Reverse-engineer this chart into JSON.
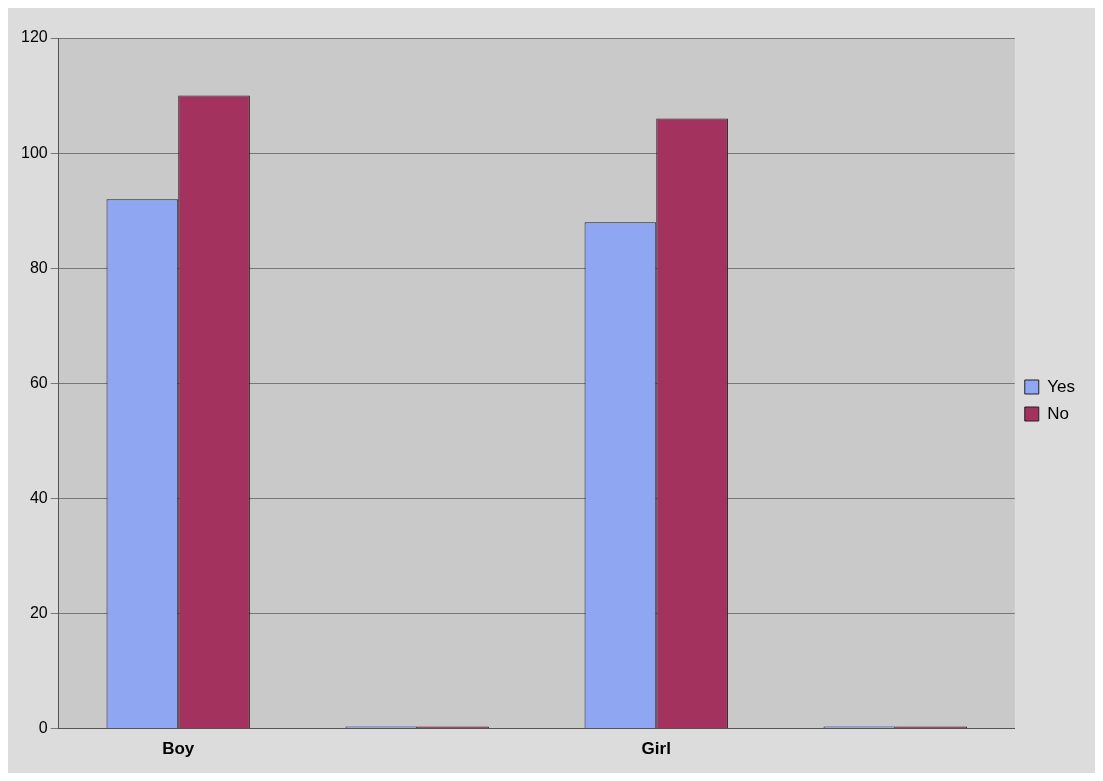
{
  "chart_data": {
    "type": "bar",
    "categories": [
      "Boy",
      null,
      "Girl",
      null
    ],
    "series": [
      {
        "name": "Yes",
        "color": "#8fa6f2",
        "values": [
          92,
          0,
          88,
          0
        ]
      },
      {
        "name": "No",
        "color": "#a3325e",
        "values": [
          110,
          0,
          106,
          0
        ]
      }
    ],
    "ylim": [
      0,
      120
    ],
    "yticks": [
      0,
      20,
      40,
      60,
      80,
      100,
      120
    ],
    "grid": "y",
    "legend": "right"
  }
}
